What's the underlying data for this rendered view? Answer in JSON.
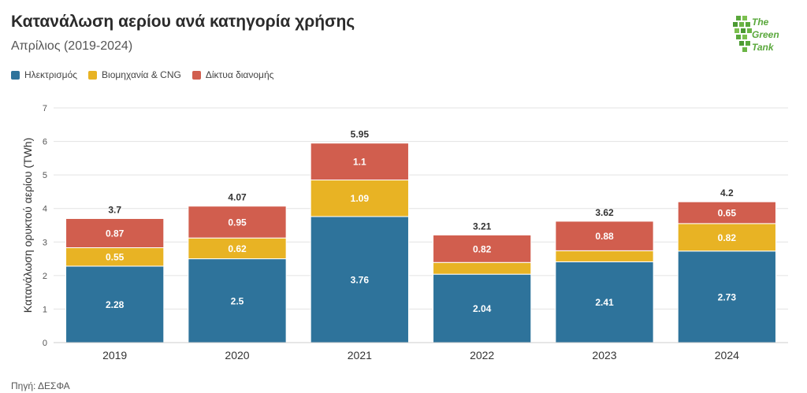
{
  "title": "Κατανάλωση αερίου ανά κατηγορία χρήσης",
  "subtitle": "Απρίλιος (2019-2024)",
  "source": "Πηγή: ΔΕΣΦΑ",
  "logo": {
    "line1": "The",
    "line2": "Green",
    "line3": "Tank",
    "color": "#5aa83c"
  },
  "chart_data": {
    "type": "bar",
    "stacked": true,
    "categories": [
      "2019",
      "2020",
      "2021",
      "2022",
      "2023",
      "2024"
    ],
    "series": [
      {
        "name": "Ηλεκτρισμός",
        "color": "#2e739b",
        "values": [
          2.28,
          2.5,
          3.76,
          2.04,
          2.41,
          2.73
        ],
        "labels": [
          "2.28",
          "2.5",
          "3.76",
          "2.04",
          "2.41",
          "2.73"
        ]
      },
      {
        "name": "Βιομηχανία & CNG",
        "color": "#e8b324",
        "values": [
          0.55,
          0.62,
          1.09,
          0.35,
          0.33,
          0.82
        ],
        "labels": [
          "0.55",
          "0.62",
          "1.09",
          "",
          "",
          "0.82"
        ]
      },
      {
        "name": "Δίκτυα διανομής",
        "color": "#d15e4e",
        "values": [
          0.87,
          0.95,
          1.1,
          0.82,
          0.88,
          0.65
        ],
        "labels": [
          "0.87",
          "0.95",
          "1.1",
          "0.82",
          "0.88",
          "0.65"
        ]
      }
    ],
    "totals": [
      "3.7",
      "4.07",
      "5.95",
      "3.21",
      "3.62",
      "4.2"
    ],
    "ylabel": "Κατανάλωση ορυκτού αερίου (TWh)",
    "xlabel": "",
    "ylim": [
      0,
      7
    ],
    "yticks": [
      "0",
      "1",
      "2",
      "3",
      "4",
      "5",
      "6",
      "7"
    ],
    "grid": true,
    "legend_position": "top-left"
  }
}
